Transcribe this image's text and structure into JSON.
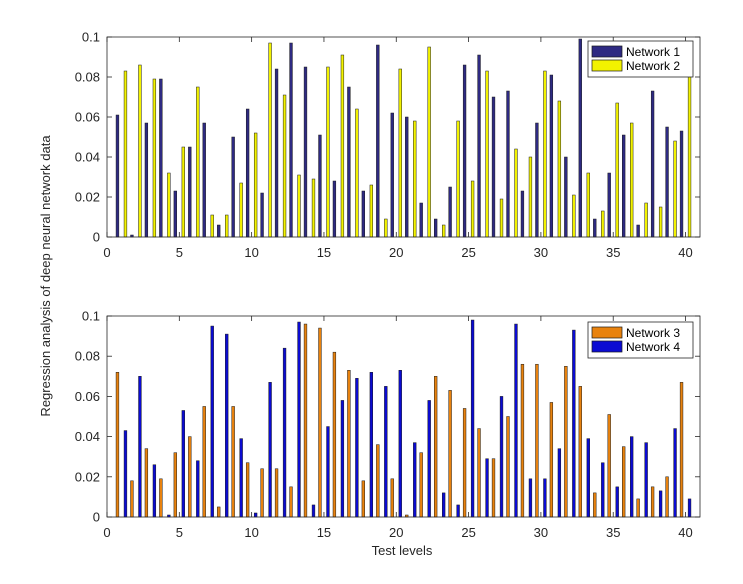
{
  "figure": {
    "ylabel": "Regression analysis of deep neural network data",
    "xlabel": "Test levels"
  },
  "chart_data": [
    {
      "type": "bar",
      "title": "",
      "xlabel": "",
      "ylabel": "Regression analysis of deep neural network data",
      "xlim": [
        0,
        41
      ],
      "ylim": [
        0,
        0.1
      ],
      "xticks": [
        0,
        5,
        10,
        15,
        20,
        25,
        30,
        35,
        40
      ],
      "yticks": [
        "0",
        "0.02",
        "0.04",
        "0.06",
        "0.08",
        "0.1"
      ],
      "legend_position": "top-right",
      "categories": [
        1,
        2,
        3,
        4,
        5,
        6,
        7,
        8,
        9,
        10,
        11,
        12,
        13,
        14,
        15,
        16,
        17,
        18,
        19,
        20,
        21,
        22,
        23,
        24,
        25,
        26,
        27,
        28,
        29,
        30,
        31,
        32,
        33,
        34,
        35,
        36,
        37,
        38,
        39,
        40
      ],
      "series": [
        {
          "name": "Network 1",
          "color": "#2e2a82",
          "values": [
            0.061,
            0.001,
            0.057,
            0.079,
            0.023,
            0.045,
            0.057,
            0.006,
            0.05,
            0.064,
            0.022,
            0.084,
            0.097,
            0.085,
            0.051,
            0.028,
            0.075,
            0.023,
            0.096,
            0.062,
            0.06,
            0.017,
            0.009,
            0.025,
            0.086,
            0.091,
            0.07,
            0.073,
            0.023,
            0.057,
            0.081,
            0.04,
            0.099,
            0.009,
            0.032,
            0.051,
            0.006,
            0.073,
            0.055,
            0.053
          ]
        },
        {
          "name": "Network 2",
          "color": "#f2f200",
          "values": [
            0.083,
            0.086,
            0.079,
            0.032,
            0.045,
            0.075,
            0.011,
            0.011,
            0.027,
            0.052,
            0.097,
            0.071,
            0.031,
            0.029,
            0.085,
            0.091,
            0.064,
            0.026,
            0.009,
            0.084,
            0.058,
            0.095,
            0.006,
            0.058,
            0.028,
            0.083,
            0.019,
            0.044,
            0.04,
            0.083,
            0.068,
            0.021,
            0.032,
            0.013,
            0.067,
            0.057,
            0.017,
            0.015,
            0.048,
            0.091
          ]
        }
      ]
    },
    {
      "type": "bar",
      "title": "",
      "xlabel": "Test levels",
      "ylabel": "Regression analysis of deep neural network data",
      "xlim": [
        0,
        41
      ],
      "ylim": [
        0,
        0.1
      ],
      "xticks": [
        0,
        5,
        10,
        15,
        20,
        25,
        30,
        35,
        40
      ],
      "yticks": [
        "0",
        "0.02",
        "0.04",
        "0.06",
        "0.08",
        "0.1"
      ],
      "legend_position": "top-right",
      "categories": [
        1,
        2,
        3,
        4,
        5,
        6,
        7,
        8,
        9,
        10,
        11,
        12,
        13,
        14,
        15,
        16,
        17,
        18,
        19,
        20,
        21,
        22,
        23,
        24,
        25,
        26,
        27,
        28,
        29,
        30,
        31,
        32,
        33,
        34,
        35,
        36,
        37,
        38,
        39,
        40
      ],
      "series": [
        {
          "name": "Network 3",
          "color": "#e8820e",
          "values": [
            0.072,
            0.018,
            0.034,
            0.019,
            0.032,
            0.04,
            0.055,
            0.005,
            0.055,
            0.027,
            0.024,
            0.024,
            0.015,
            0.096,
            0.094,
            0.082,
            0.073,
            0.018,
            0.036,
            0.019,
            0.001,
            0.032,
            0.07,
            0.063,
            0.054,
            0.044,
            0.029,
            0.05,
            0.076,
            0.076,
            0.057,
            0.075,
            0.065,
            0.012,
            0.051,
            0.035,
            0.009,
            0.015,
            0.02,
            0.067
          ]
        },
        {
          "name": "Network 4",
          "color": "#0b0bd2",
          "values": [
            0.043,
            0.07,
            0.026,
            0.001,
            0.053,
            0.028,
            0.095,
            0.091,
            0.039,
            0.002,
            0.067,
            0.084,
            0.097,
            0.006,
            0.045,
            0.058,
            0.069,
            0.072,
            0.065,
            0.073,
            0.037,
            0.058,
            0.012,
            0.006,
            0.098,
            0.029,
            0.06,
            0.096,
            0.019,
            0.019,
            0.034,
            0.093,
            0.039,
            0.027,
            0.015,
            0.04,
            0.037,
            0.013,
            0.044,
            0.009
          ]
        }
      ]
    }
  ]
}
